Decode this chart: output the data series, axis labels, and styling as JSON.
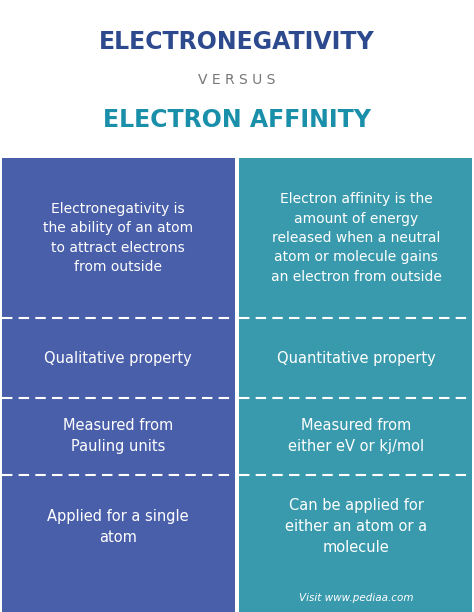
{
  "title_line1": "ELECTRONEGATIVITY",
  "title_line2": "V E R S U S",
  "title_line3": "ELECTRON AFFINITY",
  "title_color1": "#2e4a8e",
  "title_color2": "#777777",
  "title_color3": "#1a8faa",
  "bg_color": "#ffffff",
  "left_bg": "#4a5faa",
  "right_bg": "#3a9aad",
  "left_texts": [
    "Electronegativity is\nthe ability of an atom\nto attract electrons\nfrom outside",
    "Qualitative property",
    "Measured from\nPauling units",
    "Applied for a single\natom"
  ],
  "right_texts": [
    "Electron affinity is the\namount of energy\nreleased when a neutral\natom or molecule gains\nan electron from outside",
    "Quantitative property",
    "Measured from\neither eV or kj/mol",
    "Can be applied for\neither an atom or a\nmolecule"
  ],
  "cell_text_color": "#ffffff",
  "divider_color": "#ffffff",
  "footer_text": "Visit www.pediaa.com",
  "footer_color": "#ffffff",
  "row_tops": [
    158,
    318,
    398,
    475,
    578
  ],
  "font_sizes": [
    10,
    10.5,
    10.5,
    10.5
  ]
}
